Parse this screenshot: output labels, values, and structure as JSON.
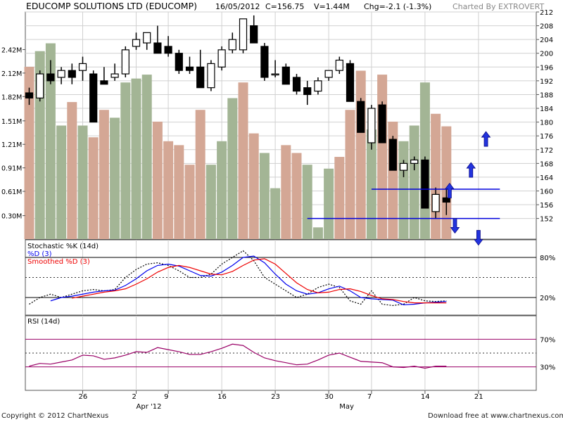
{
  "header": {
    "title": "EDUCOMP SOLUTIONS LTD (EDUCOMP)",
    "date": "16/05/2012",
    "close": "C=156.75",
    "volume": "V=1.44M",
    "change": "Chg=-2.1 (-1.3%)",
    "charted_by": "Charted By EXTROVERT"
  },
  "footer": {
    "copyright": "Copyright © 2012 ChartNexus",
    "website": "Download free at www.chartnexus.com"
  },
  "colors": {
    "up_volume": "#a3b595",
    "down_volume": "#d4a795",
    "stoch_k": "#000000",
    "stoch_d": "#0000ee",
    "stoch_smooth": "#ee0000",
    "rsi": "#990066",
    "level_line": "#0000dd",
    "arrow": "#2233dd"
  },
  "chart_data": [
    {
      "type": "candlestick",
      "name": "price",
      "ylim": [
        146,
        212
      ],
      "yticks": [
        152,
        156,
        160,
        164,
        168,
        172,
        176,
        180,
        184,
        188,
        192,
        196,
        200,
        204,
        208,
        212
      ],
      "xtick_labels": [
        {
          "i": 5,
          "label": "26"
        },
        {
          "i": 10,
          "label": "2"
        },
        {
          "i": 13,
          "label": "9"
        },
        {
          "i": 18,
          "label": "16"
        },
        {
          "i": 23,
          "label": "23"
        },
        {
          "i": 28,
          "label": "30"
        },
        {
          "i": 32,
          "label": "7"
        },
        {
          "i": 37,
          "label": "14"
        },
        {
          "i": 42,
          "label": "21"
        }
      ],
      "month_labels": [
        {
          "i": 10,
          "label": "Apr '12"
        },
        {
          "i": 29,
          "label": "May"
        }
      ],
      "ohlc": [
        [
          188.5,
          190,
          185,
          187
        ],
        [
          187,
          195,
          186,
          194
        ],
        [
          194,
          198,
          191,
          192
        ],
        [
          193,
          196,
          191,
          195
        ],
        [
          195,
          197,
          191,
          193
        ],
        [
          195,
          199,
          192,
          197
        ],
        [
          194,
          195,
          180,
          180
        ],
        [
          192,
          196,
          191,
          191
        ],
        [
          193,
          197,
          192,
          194
        ],
        [
          194,
          202,
          193,
          201
        ],
        [
          202,
          206,
          201,
          204
        ],
        [
          203,
          206,
          201,
          206
        ],
        [
          203,
          208,
          200,
          200
        ],
        [
          202,
          205,
          199,
          200
        ],
        [
          200,
          201,
          194,
          195
        ],
        [
          196,
          199,
          194,
          195
        ],
        [
          196,
          201,
          190,
          190
        ],
        [
          190,
          198,
          189,
          197
        ],
        [
          196,
          202,
          195,
          201
        ],
        [
          201,
          206,
          200,
          204
        ],
        [
          201,
          210,
          200,
          210
        ],
        [
          208,
          211,
          203,
          203
        ],
        [
          202,
          203,
          192,
          193
        ],
        [
          194,
          198,
          193,
          194
        ],
        [
          196,
          197,
          191,
          191
        ],
        [
          193,
          194,
          188,
          189
        ],
        [
          190,
          192,
          185,
          188
        ],
        [
          189,
          193,
          188,
          192
        ],
        [
          193,
          195,
          192,
          195
        ],
        [
          195,
          199,
          194,
          198
        ],
        [
          197,
          198,
          186,
          186
        ],
        [
          186,
          187,
          177,
          177
        ],
        [
          174,
          185,
          172,
          184
        ],
        [
          185,
          186,
          174,
          174
        ],
        [
          175,
          176,
          166,
          166
        ],
        [
          166,
          169,
          164,
          168
        ],
        [
          168,
          170,
          166,
          169
        ],
        [
          169,
          170,
          155,
          155
        ],
        [
          154,
          161,
          152,
          159
        ],
        [
          158,
          161,
          153,
          156.75
        ]
      ],
      "horizontal_levels": [
        {
          "y": 160.5,
          "from_i": 32,
          "to_i": 44
        },
        {
          "y": 152,
          "from_i": 26,
          "to_i": 44
        }
      ],
      "arrows": [
        {
          "i": 42.7,
          "y": 175,
          "dir": "up"
        },
        {
          "i": 41.3,
          "y": 166,
          "dir": "up"
        },
        {
          "i": 39.3,
          "y": 160,
          "dir": "up"
        },
        {
          "i": 39.8,
          "y": 150,
          "dir": "down"
        },
        {
          "i": 42.0,
          "y": 146.5,
          "dir": "down"
        }
      ]
    },
    {
      "type": "bar",
      "name": "volume",
      "yticks": [
        "0.30M",
        "0.61M",
        "0.91M",
        "1.21M",
        "1.51M",
        "1.82M",
        "2.12M",
        "2.42M"
      ],
      "ytick_values": [
        0.3,
        0.61,
        0.91,
        1.21,
        1.51,
        1.82,
        2.12,
        2.42
      ],
      "ylim": [
        0,
        2.9
      ],
      "values": [
        2.2,
        2.4,
        2.5,
        1.45,
        1.75,
        1.45,
        1.3,
        1.65,
        1.55,
        2.0,
        2.05,
        2.1,
        1.5,
        1.25,
        1.2,
        0.95,
        1.65,
        0.95,
        1.25,
        1.8,
        2.0,
        1.35,
        1.1,
        0.65,
        1.2,
        1.1,
        0.95,
        0.15,
        0.9,
        1.05,
        1.65,
        2.15,
        1.4,
        2.1,
        1.5,
        1.25,
        1.45,
        2.0,
        1.6,
        1.44
      ],
      "directions": [
        "down",
        "up",
        "up",
        "up",
        "down",
        "up",
        "down",
        "down",
        "up",
        "up",
        "up",
        "up",
        "down",
        "down",
        "down",
        "down",
        "down",
        "up",
        "up",
        "up",
        "down",
        "down",
        "up",
        "up",
        "down",
        "down",
        "up",
        "up",
        "up",
        "down",
        "down",
        "down",
        "up",
        "down",
        "down",
        "up",
        "up",
        "up",
        "down",
        "down"
      ]
    },
    {
      "type": "line",
      "name": "stochastic",
      "title": "Stochastic %K (14d)",
      "ylim": [
        0,
        100
      ],
      "levels": [
        {
          "y": 80,
          "label": "80%",
          "style": "solid"
        },
        {
          "y": 50,
          "label": "",
          "style": "dotted"
        },
        {
          "y": 20,
          "label": "20%",
          "style": "solid"
        }
      ],
      "series": [
        {
          "name": "Stochastic %K (14d)",
          "style": "dotted",
          "color": "#000000",
          "values": [
            10,
            20,
            25,
            20,
            25,
            30,
            32,
            30,
            32,
            50,
            62,
            70,
            72,
            68,
            60,
            50,
            50,
            55,
            70,
            80,
            90,
            75,
            50,
            40,
            30,
            20,
            25,
            35,
            40,
            35,
            15,
            10,
            30,
            10,
            8,
            10,
            20,
            15,
            14,
            15
          ]
        },
        {
          "name": "%D (3)",
          "style": "solid",
          "color": "#0000ee",
          "values": [
            null,
            null,
            15,
            20,
            22,
            25,
            28,
            30,
            31,
            38,
            48,
            60,
            68,
            70,
            67,
            60,
            53,
            52,
            58,
            68,
            80,
            82,
            72,
            55,
            40,
            30,
            25,
            27,
            33,
            37,
            30,
            20,
            18,
            17,
            16,
            9,
            10,
            12,
            13,
            14
          ]
        },
        {
          "name": "Smoothed %D (3)",
          "style": "solid",
          "color": "#ee0000",
          "values": [
            null,
            null,
            null,
            null,
            19,
            22,
            25,
            28,
            30,
            33,
            40,
            48,
            58,
            65,
            68,
            65,
            60,
            55,
            54,
            59,
            68,
            76,
            78,
            70,
            56,
            42,
            32,
            27,
            28,
            32,
            33,
            29,
            23,
            18,
            17,
            14,
            12,
            12,
            12,
            12
          ]
        }
      ]
    },
    {
      "type": "line",
      "name": "rsi",
      "title": "RSI (14d)",
      "ylim": [
        0,
        100
      ],
      "levels": [
        {
          "y": 70,
          "label": "70%",
          "style": "solid"
        },
        {
          "y": 50,
          "label": "",
          "style": "dotted"
        },
        {
          "y": 30,
          "label": "30%",
          "style": "solid"
        }
      ],
      "series": [
        {
          "name": "RSI (14d)",
          "color": "#990066",
          "values": [
            31,
            35,
            34,
            37,
            40,
            47,
            46,
            41,
            43,
            47,
            52,
            51,
            58,
            55,
            52,
            48,
            48,
            52,
            57,
            63,
            61,
            51,
            43,
            39,
            36,
            33,
            34,
            40,
            47,
            50,
            44,
            38,
            37,
            36,
            30,
            29,
            31,
            28,
            31,
            31
          ]
        }
      ]
    }
  ]
}
